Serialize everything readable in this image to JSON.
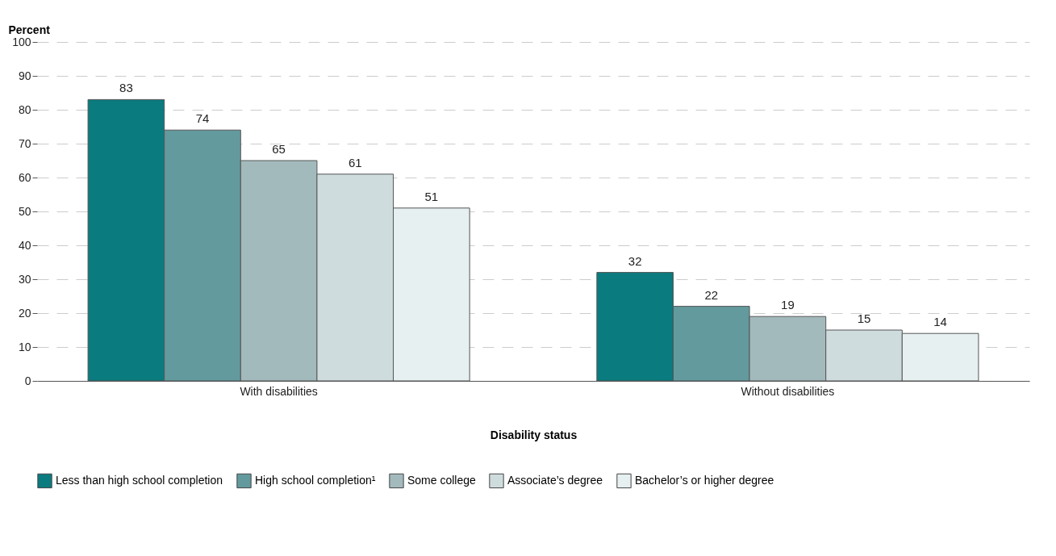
{
  "chart_data": {
    "type": "bar",
    "ylabel": "Percent",
    "xlabel": "Disability status",
    "categories": [
      "With disabilities",
      "Without disabilities"
    ],
    "series": [
      {
        "name": "Less than high school completion",
        "color": "#0a7b7f",
        "values": [
          83,
          32
        ]
      },
      {
        "name": "High school completion¹",
        "color": "#639a9e",
        "values": [
          74,
          22
        ]
      },
      {
        "name": "Some college",
        "color": "#a3babd",
        "values": [
          65,
          19
        ]
      },
      {
        "name": "Associate’s degree",
        "color": "#cfdcdd",
        "values": [
          61,
          15
        ]
      },
      {
        "name": "Bachelor’s or higher degree",
        "color": "#e6f0f0",
        "values": [
          51,
          14
        ]
      }
    ],
    "ylim": [
      0,
      100
    ],
    "yticks": [
      0,
      10,
      20,
      30,
      40,
      50,
      60,
      70,
      80,
      90,
      100
    ],
    "grid": "y",
    "data_labels": true,
    "legend": "bottom"
  }
}
